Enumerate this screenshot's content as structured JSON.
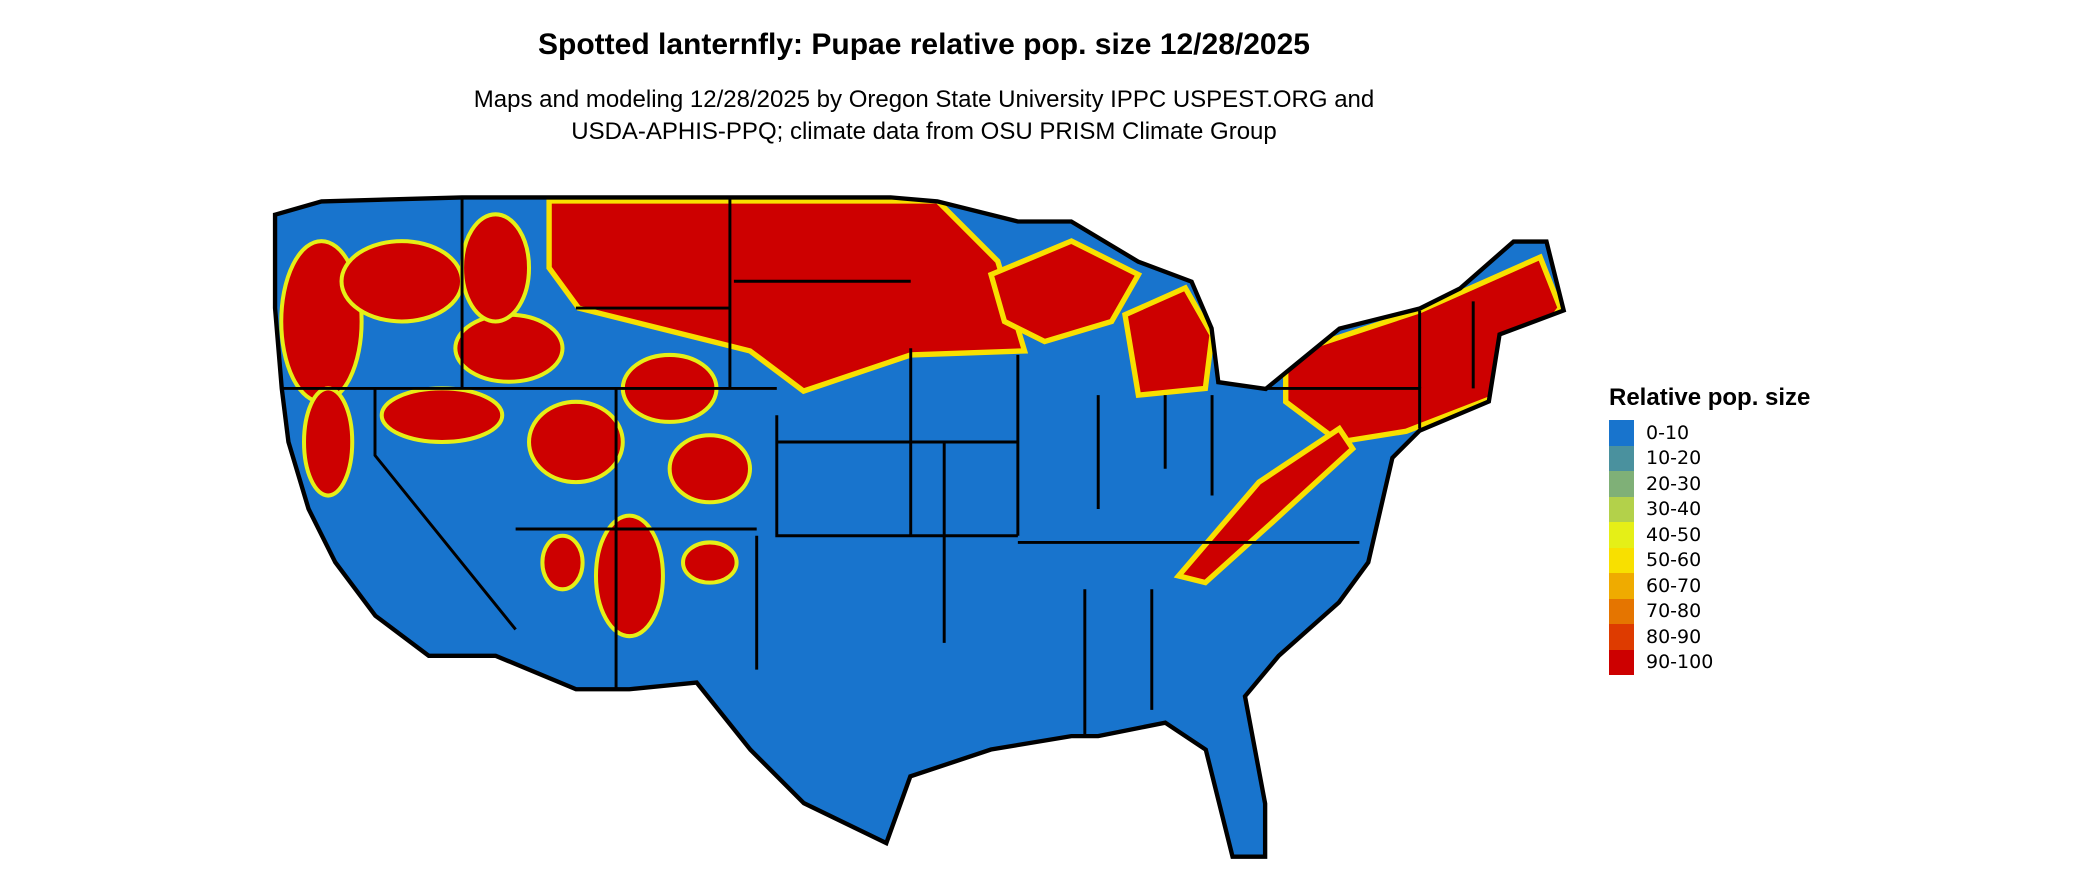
{
  "title": "Spotted lanternfly: Pupae relative pop. size 12/28/2025",
  "subtitle_line1": "Maps and modeling 12/28/2025 by Oregon State University IPPC USPEST.ORG and",
  "subtitle_line2": "USDA-APHIS-PPQ; climate data from OSU PRISM Climate Group",
  "legend": {
    "title": "Relative pop. size",
    "items": [
      {
        "label": "0-10",
        "color": "#1874cd"
      },
      {
        "label": "10-20",
        "color": "#4a919e"
      },
      {
        "label": "20-30",
        "color": "#7fb077"
      },
      {
        "label": "30-40",
        "color": "#b3d14a"
      },
      {
        "label": "40-50",
        "color": "#e5ef17"
      },
      {
        "label": "50-60",
        "color": "#f8e000"
      },
      {
        "label": "60-70",
        "color": "#efab00"
      },
      {
        "label": "70-80",
        "color": "#e57500"
      },
      {
        "label": "80-90",
        "color": "#de3b00"
      },
      {
        "label": "90-100",
        "color": "#cd0000"
      }
    ]
  }
}
